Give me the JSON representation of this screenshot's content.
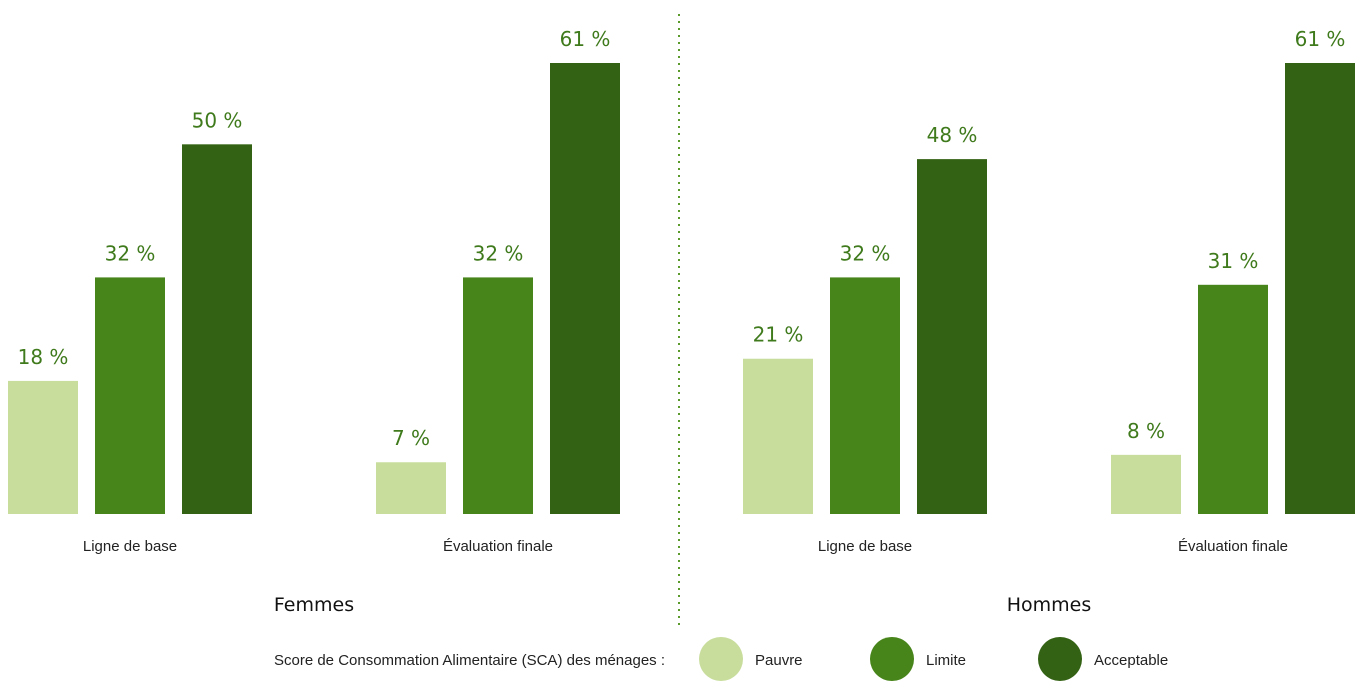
{
  "chart_data": {
    "type": "bar",
    "ylim": [
      0,
      70
    ],
    "value_suffix": " %",
    "legend": {
      "title": "Score de Consommation Alimentaire (SCA) des ménages :",
      "placement": "bottom",
      "entries": [
        {
          "name": "Pauvre",
          "color": "#c8dd9c"
        },
        {
          "name": "Limite",
          "color": "#478419"
        },
        {
          "name": "Acceptable",
          "color": "#346214"
        }
      ]
    },
    "panels": [
      {
        "title": "Femmes",
        "categories": [
          "Ligne de base",
          "Évaluation finale"
        ],
        "series": [
          {
            "name": "Pauvre",
            "values": [
              18,
              7
            ]
          },
          {
            "name": "Limite",
            "values": [
              32,
              32
            ]
          },
          {
            "name": "Acceptable",
            "values": [
              50,
              61
            ]
          }
        ]
      },
      {
        "title": "Hommes",
        "categories": [
          "Ligne de base",
          "Évaluation finale"
        ],
        "series": [
          {
            "name": "Pauvre",
            "values": [
              21,
              8
            ]
          },
          {
            "name": "Limite",
            "values": [
              32,
              31
            ]
          },
          {
            "name": "Acceptable",
            "values": [
              48,
              61
            ]
          }
        ]
      }
    ],
    "divider_color": "#5a9a2a"
  }
}
